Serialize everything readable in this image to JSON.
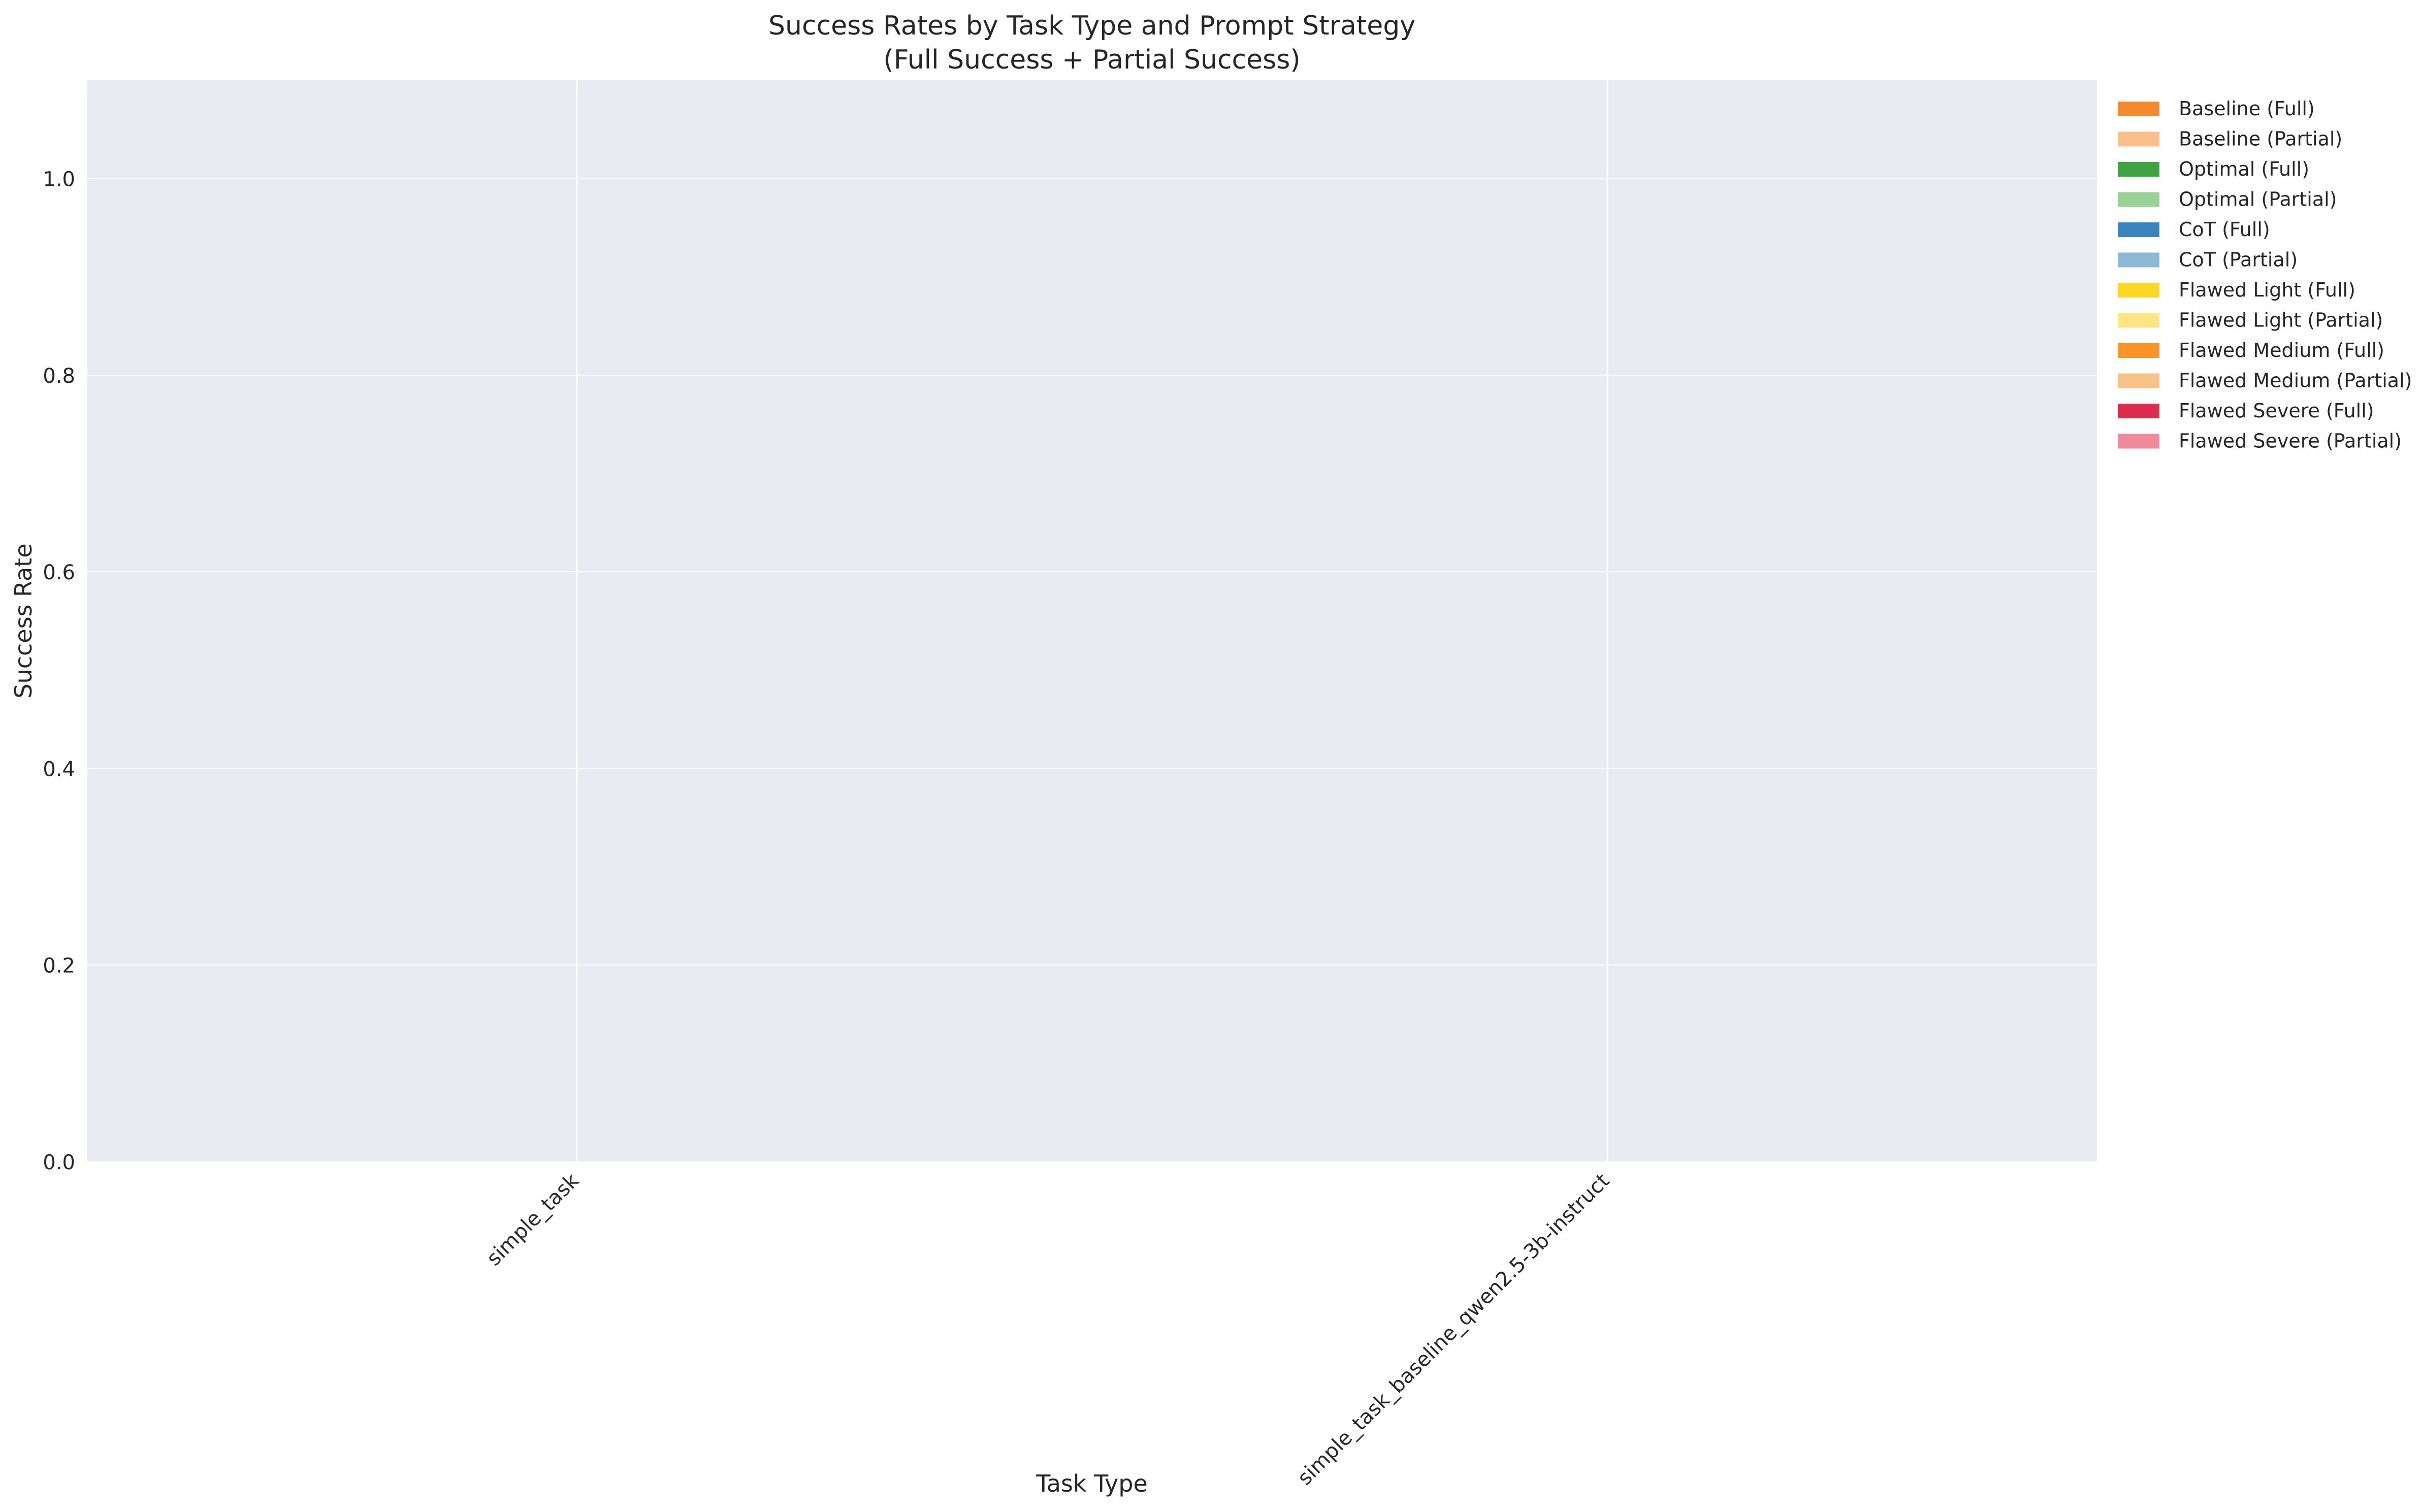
{
  "chart_data": {
    "type": "bar",
    "title": "Success Rates by Task Type and Prompt Strategy",
    "subtitle": "(Full Success + Partial Success)",
    "xlabel": "Task Type",
    "ylabel": "Success Rate",
    "categories": [
      "simple_task",
      "simple_task_baseline_qwen2.5-3b-instruct"
    ],
    "ylim": [
      0,
      1.1
    ],
    "yticks": [
      0.0,
      0.2,
      0.4,
      0.6,
      0.8,
      1.0
    ],
    "ytick_labels": [
      "0.0",
      "0.2",
      "0.4",
      "0.6",
      "0.8",
      "1.0"
    ],
    "grid": true,
    "stacked": true,
    "legend_position": "outside-right-top",
    "series": [
      {
        "name": "Baseline (Full)",
        "color": "#f5892f",
        "values": [
          0,
          0
        ]
      },
      {
        "name": "Baseline (Partial)",
        "color": "#fbbf8c",
        "values": [
          0,
          0
        ]
      },
      {
        "name": "Optimal (Full)",
        "color": "#3fa343",
        "values": [
          0,
          0
        ]
      },
      {
        "name": "Optimal (Partial)",
        "color": "#98d294",
        "values": [
          0,
          0
        ]
      },
      {
        "name": "CoT (Full)",
        "color": "#3a83bd",
        "values": [
          0,
          0
        ]
      },
      {
        "name": "CoT (Partial)",
        "color": "#8db8d8",
        "values": [
          0,
          0
        ]
      },
      {
        "name": "Flawed Light (Full)",
        "color": "#fed624",
        "values": [
          0,
          0
        ]
      },
      {
        "name": "Flawed Light (Partial)",
        "color": "#fee584",
        "values": [
          0,
          0
        ]
      },
      {
        "name": "Flawed Medium (Full)",
        "color": "#fb9428",
        "values": [
          0,
          0
        ]
      },
      {
        "name": "Flawed Medium (Partial)",
        "color": "#fbc287",
        "values": [
          0,
          0
        ]
      },
      {
        "name": "Flawed Severe (Full)",
        "color": "#dc2d4e",
        "values": [
          0,
          0
        ]
      },
      {
        "name": "Flawed Severe (Partial)",
        "color": "#ef8b9d",
        "values": [
          0,
          0
        ]
      }
    ],
    "colors": {
      "plot_background": "#eaeaf2",
      "grid_line": "#ffffff",
      "text": "#262626"
    }
  }
}
